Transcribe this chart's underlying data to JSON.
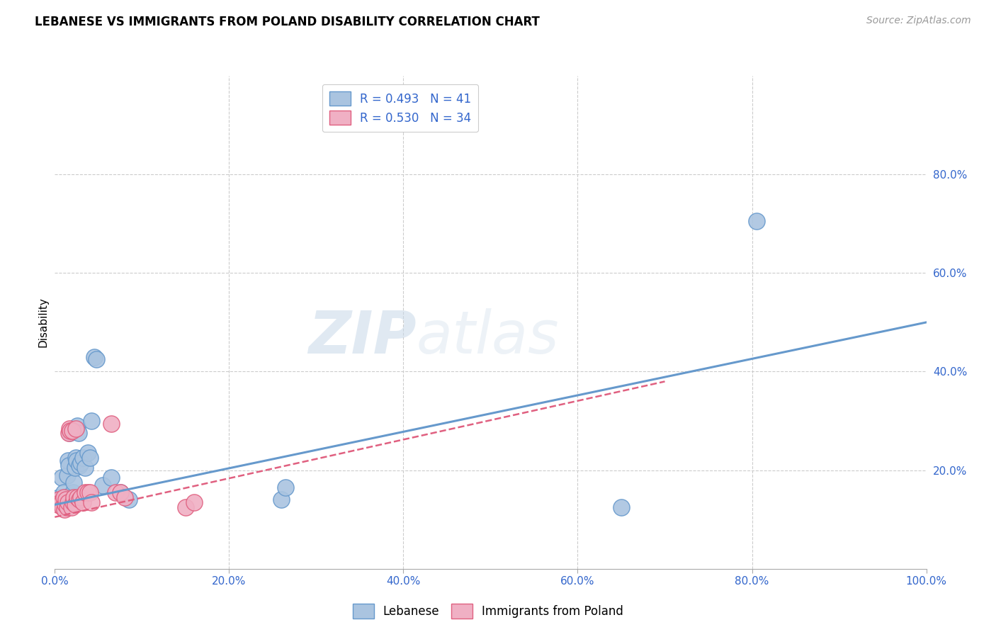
{
  "title": "LEBANESE VS IMMIGRANTS FROM POLAND DISABILITY CORRELATION CHART",
  "source": "Source: ZipAtlas.com",
  "ylabel": "Disability",
  "xlim": [
    0,
    100
  ],
  "ylim": [
    0,
    100
  ],
  "xticks": [
    0,
    20,
    40,
    60,
    80,
    100
  ],
  "yticks": [
    0,
    20,
    40,
    60,
    80
  ],
  "xtick_labels": [
    "0.0%",
    "20.0%",
    "40.0%",
    "60.0%",
    "80.0%",
    "100.0%"
  ],
  "ytick_labels": [
    "",
    "20.0%",
    "40.0%",
    "60.0%",
    "80.0%"
  ],
  "legend_entries": [
    {
      "label": "R = 0.493   N = 41"
    },
    {
      "label": "R = 0.530   N = 34"
    }
  ],
  "blue_color": "#6699cc",
  "pink_color": "#e06080",
  "blue_fill": "#aac4e0",
  "pink_fill": "#f0b0c4",
  "watermark_zip": "ZIP",
  "watermark_atlas": "atlas",
  "blue_scatter": [
    [
      0.3,
      13.5
    ],
    [
      0.5,
      14.5
    ],
    [
      0.6,
      13.0
    ],
    [
      0.7,
      14.0
    ],
    [
      0.8,
      18.5
    ],
    [
      0.9,
      13.0
    ],
    [
      1.0,
      15.5
    ],
    [
      1.1,
      12.5
    ],
    [
      1.2,
      14.5
    ],
    [
      1.3,
      13.5
    ],
    [
      1.4,
      19.0
    ],
    [
      1.5,
      22.0
    ],
    [
      1.6,
      21.0
    ],
    [
      1.7,
      27.5
    ],
    [
      1.8,
      13.5
    ],
    [
      1.9,
      14.0
    ],
    [
      2.0,
      13.5
    ],
    [
      2.1,
      15.5
    ],
    [
      2.2,
      17.5
    ],
    [
      2.3,
      20.5
    ],
    [
      2.4,
      22.5
    ],
    [
      2.5,
      22.0
    ],
    [
      2.6,
      29.0
    ],
    [
      2.7,
      27.5
    ],
    [
      2.8,
      21.0
    ],
    [
      3.0,
      21.5
    ],
    [
      3.2,
      22.5
    ],
    [
      3.5,
      20.5
    ],
    [
      3.8,
      23.5
    ],
    [
      4.0,
      22.5
    ],
    [
      4.2,
      30.0
    ],
    [
      4.5,
      43.0
    ],
    [
      4.8,
      42.5
    ],
    [
      5.5,
      17.0
    ],
    [
      6.5,
      18.5
    ],
    [
      7.5,
      15.5
    ],
    [
      8.5,
      14.0
    ],
    [
      26.0,
      14.0
    ],
    [
      26.5,
      16.5
    ],
    [
      65.0,
      12.5
    ],
    [
      80.5,
      70.5
    ]
  ],
  "pink_scatter": [
    [
      0.3,
      13.0
    ],
    [
      0.5,
      14.0
    ],
    [
      0.6,
      13.5
    ],
    [
      0.8,
      13.5
    ],
    [
      0.9,
      12.5
    ],
    [
      1.0,
      14.5
    ],
    [
      1.1,
      12.0
    ],
    [
      1.2,
      13.0
    ],
    [
      1.3,
      14.0
    ],
    [
      1.4,
      12.5
    ],
    [
      1.5,
      13.5
    ],
    [
      1.6,
      27.5
    ],
    [
      1.7,
      28.5
    ],
    [
      1.8,
      28.0
    ],
    [
      1.9,
      12.5
    ],
    [
      2.0,
      28.0
    ],
    [
      2.1,
      13.5
    ],
    [
      2.2,
      14.5
    ],
    [
      2.3,
      13.0
    ],
    [
      2.4,
      28.5
    ],
    [
      2.6,
      14.5
    ],
    [
      2.8,
      14.0
    ],
    [
      3.0,
      14.5
    ],
    [
      3.2,
      13.5
    ],
    [
      3.5,
      15.5
    ],
    [
      3.8,
      15.5
    ],
    [
      4.0,
      15.5
    ],
    [
      4.2,
      13.5
    ],
    [
      6.5,
      29.5
    ],
    [
      7.0,
      15.5
    ],
    [
      7.5,
      15.5
    ],
    [
      8.0,
      14.5
    ],
    [
      15.0,
      12.5
    ],
    [
      16.0,
      13.5
    ]
  ],
  "blue_line": [
    0,
    13.0,
    100,
    50.0
  ],
  "pink_line": [
    0,
    10.5,
    70,
    38.0
  ],
  "background_color": "#ffffff",
  "grid_color": "#cccccc",
  "tick_color": "#3366cc",
  "title_color": "#000000",
  "ylabel_color": "#000000",
  "source_color": "#999999"
}
